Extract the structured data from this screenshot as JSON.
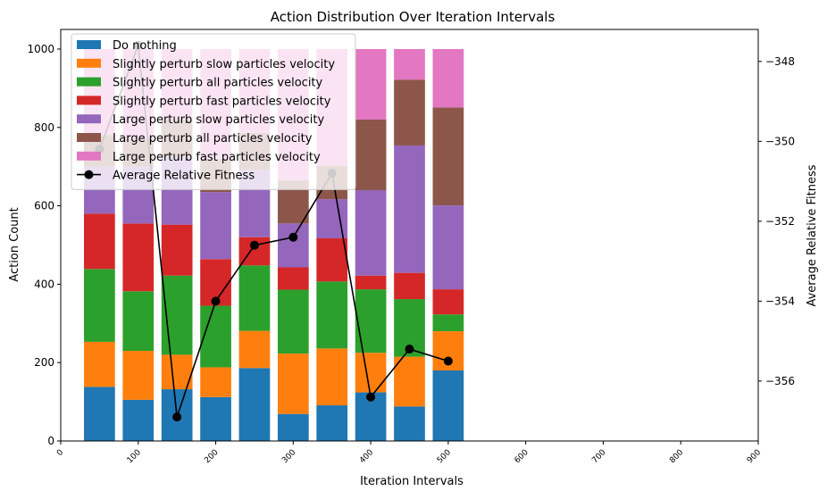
{
  "chart_data": {
    "type": "bar",
    "stacked": true,
    "title": "Action Distribution Over Iteration Intervals",
    "xlabel": "Iteration Intervals",
    "ylabel": "Action Count",
    "y2label": "Average Relative Fitness",
    "xlim": [
      0,
      900
    ],
    "ylim": [
      0,
      1050
    ],
    "y2lim": [
      -357.5,
      -347.2
    ],
    "xticks": [
      "0",
      "100",
      "200",
      "300",
      "400",
      "500",
      "600",
      "700",
      "800",
      "900"
    ],
    "yticks": [
      "0",
      "200",
      "400",
      "600",
      "800",
      "1000"
    ],
    "y2ticks": [
      "−348",
      "−350",
      "−352",
      "−354",
      "−356"
    ],
    "x": [
      50,
      100,
      150,
      200,
      250,
      300,
      350,
      400,
      450,
      500
    ],
    "bar_width": 40,
    "series": [
      {
        "name": "Do nothing",
        "color": "#1f77b4",
        "values": [
          138,
          105,
          132,
          112,
          186,
          69,
          91,
          124,
          88,
          180
        ]
      },
      {
        "name": "Slightly perturb slow particles velocity",
        "color": "#ff7f0e",
        "values": [
          115,
          125,
          88,
          76,
          95,
          154,
          145,
          101,
          127,
          100
        ]
      },
      {
        "name": "Slightly perturb all particles velocity",
        "color": "#2ca02c",
        "values": [
          186,
          152,
          202,
          157,
          167,
          163,
          171,
          162,
          147,
          43
        ]
      },
      {
        "name": "Slightly perturb fast particles velocity",
        "color": "#d62728",
        "values": [
          141,
          173,
          130,
          119,
          72,
          57,
          110,
          35,
          67,
          64
        ]
      },
      {
        "name": "Large perturb slow particles velocity",
        "color": "#9467bd",
        "values": [
          120,
          145,
          173,
          171,
          171,
          112,
          100,
          218,
          325,
          214
        ]
      },
      {
        "name": "Large perturb all particles velocity",
        "color": "#8c564b",
        "values": [
          80,
          70,
          95,
          85,
          95,
          110,
          85,
          180,
          168,
          250
        ]
      },
      {
        "name": "Large perturb fast particles velocity",
        "color": "#e377c2",
        "values": [
          220,
          230,
          180,
          280,
          214,
          335,
          298,
          180,
          78,
          149
        ]
      }
    ],
    "line_series": {
      "name": "Average Relative Fitness",
      "color": "#000000",
      "axis": "right",
      "values": [
        -350.2,
        -347.6,
        -356.9,
        -354.0,
        -352.6,
        -352.4,
        -350.8,
        -356.4,
        -355.2,
        -355.5
      ]
    },
    "legend_position": "upper-left"
  }
}
